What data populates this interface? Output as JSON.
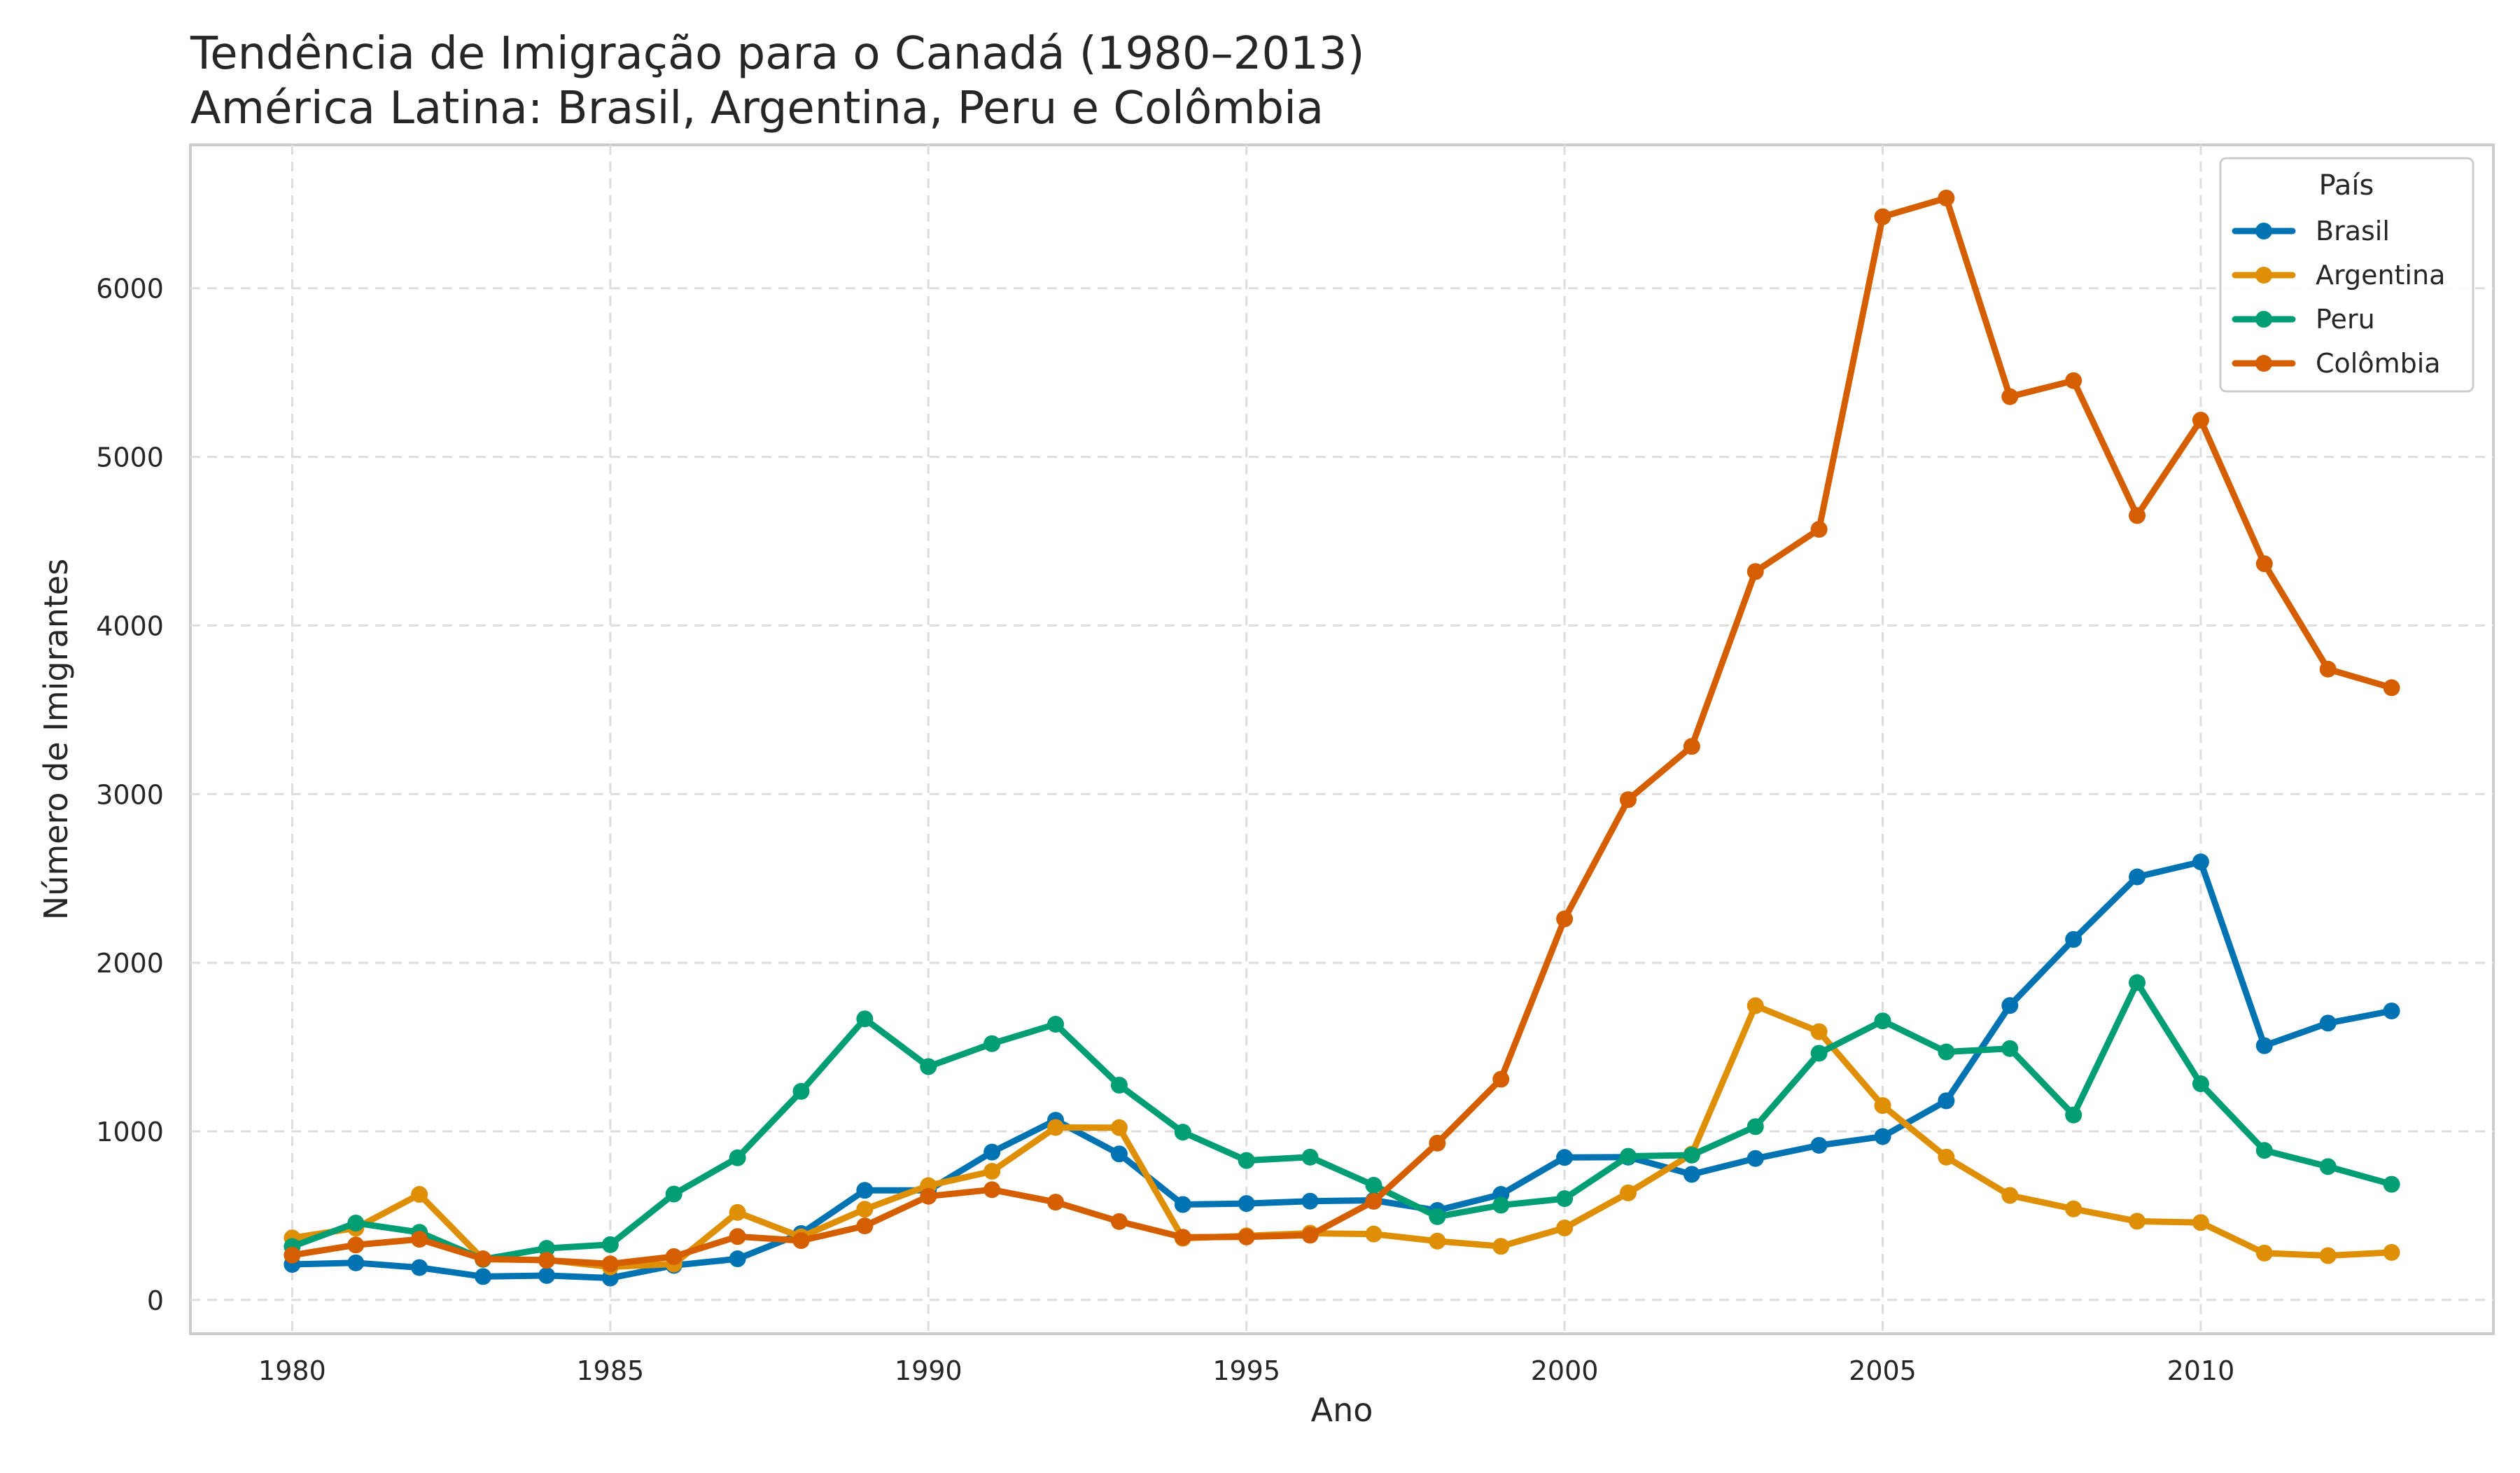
{
  "chart_data": {
    "type": "line",
    "title_line1": "Tendência de Imigração para o Canadá (1980–2013)",
    "title_line2": "América Latina: Brasil, Argentina, Peru e Colômbia",
    "xlabel": "Ano",
    "ylabel": "Número de Imigrantes",
    "xlim": [
      1978.4,
      2014.6
    ],
    "ylim": [
      -200,
      6850
    ],
    "xticks": [
      1980,
      1985,
      1990,
      1995,
      2000,
      2005,
      2010
    ],
    "yticks": [
      0,
      1000,
      2000,
      3000,
      4000,
      5000,
      6000
    ],
    "grid": true,
    "legend_title": "País",
    "legend_position": "top-right",
    "x": [
      1980,
      1981,
      1982,
      1983,
      1984,
      1985,
      1986,
      1987,
      1988,
      1989,
      1990,
      1991,
      1992,
      1993,
      1994,
      1995,
      1996,
      1997,
      1998,
      1999,
      2000,
      2001,
      2002,
      2003,
      2004,
      2005,
      2006,
      2007,
      2008,
      2009,
      2010,
      2011,
      2012,
      2013
    ],
    "series": [
      {
        "name": "Brasil",
        "color": "#0173b2",
        "values": [
          211,
          220,
          192,
          139,
          145,
          130,
          205,
          244,
          394,
          650,
          650,
          877,
          1066,
          866,
          566,
          572,
          586,
          591,
          531,
          626,
          845,
          847,
          745,
          839,
          917,
          969,
          1181,
          1746,
          2138,
          2509,
          2598,
          1508,
          1642,
          1714
        ]
      },
      {
        "name": "Argentina",
        "color": "#de8f05",
        "values": [
          368,
          426,
          626,
          241,
          237,
          196,
          213,
          519,
          374,
          538,
          678,
          763,
          1023,
          1022,
          366,
          380,
          396,
          391,
          349,
          318,
          427,
          635,
          865,
          1745,
          1591,
          1153,
          847,
          620,
          540,
          467,
          459,
          278,
          263,
          282
        ]
      },
      {
        "name": "Peru",
        "color": "#029e73",
        "values": [
          317,
          456,
          401,
          241,
          306,
          328,
          628,
          843,
          1237,
          1667,
          1384,
          1520,
          1635,
          1274,
          995,
          827,
          847,
          680,
          494,
          562,
          601,
          852,
          859,
          1028,
          1463,
          1655,
          1471,
          1491,
          1097,
          1882,
          1282,
          887,
          791,
          686
        ]
      },
      {
        "name": "Colômbia",
        "color": "#d55e00",
        "values": [
          266,
          326,
          360,
          244,
          235,
          214,
          257,
          376,
          352,
          439,
          615,
          654,
          580,
          465,
          372,
          374,
          384,
          585,
          930,
          1309,
          2260,
          2967,
          3283,
          4320,
          4570,
          6424,
          6535,
          5357,
          5452,
          4652,
          5218,
          4366,
          3741,
          3631
        ]
      }
    ]
  }
}
